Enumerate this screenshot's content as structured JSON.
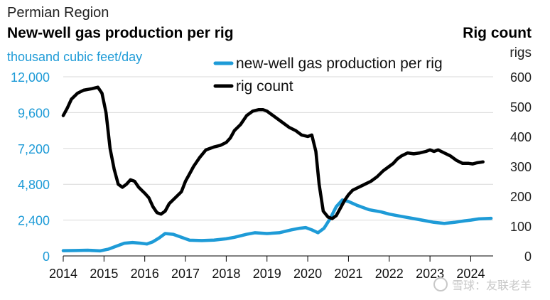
{
  "header": {
    "region": "Permian Region",
    "left_title": "New-well gas production per rig",
    "left_unit": "thousand cubic feet/day",
    "right_title": "Rig count",
    "right_unit": "rigs"
  },
  "watermark": {
    "text": "雪球：友联老羊"
  },
  "colors": {
    "production": "#1e9bd7",
    "rigs": "#000000",
    "grid": "#d9d9d9",
    "axis": "#000000"
  },
  "chart_data": {
    "type": "line",
    "x_ticks": [
      "2014",
      "2015",
      "2016",
      "2017",
      "2018",
      "2019",
      "2020",
      "2021",
      "2022",
      "2023",
      "2024"
    ],
    "xlim": [
      2014,
      2024.55
    ],
    "y_left": {
      "ticks": [
        "0",
        "2,400",
        "4,800",
        "7,200",
        "9,600",
        "12,000"
      ],
      "lim": [
        0,
        12000
      ]
    },
    "y_right": {
      "ticks": [
        "0",
        "100",
        "200",
        "300",
        "400",
        "500",
        "600"
      ],
      "lim": [
        0,
        600
      ]
    },
    "legend": {
      "placement": "top-center"
    },
    "grid": "horizontal",
    "series": [
      {
        "name": "new-well gas production per rig",
        "axis": "left",
        "color": "#1e9bd7",
        "points": [
          [
            2014.0,
            350
          ],
          [
            2014.3,
            360
          ],
          [
            2014.6,
            380
          ],
          [
            2014.9,
            340
          ],
          [
            2015.1,
            450
          ],
          [
            2015.3,
            650
          ],
          [
            2015.5,
            850
          ],
          [
            2015.7,
            900
          ],
          [
            2015.9,
            850
          ],
          [
            2016.05,
            800
          ],
          [
            2016.2,
            950
          ],
          [
            2016.35,
            1200
          ],
          [
            2016.5,
            1500
          ],
          [
            2016.7,
            1450
          ],
          [
            2016.9,
            1250
          ],
          [
            2017.1,
            1050
          ],
          [
            2017.4,
            1030
          ],
          [
            2017.7,
            1060
          ],
          [
            2018.0,
            1150
          ],
          [
            2018.2,
            1250
          ],
          [
            2018.5,
            1450
          ],
          [
            2018.7,
            1550
          ],
          [
            2019.0,
            1500
          ],
          [
            2019.3,
            1550
          ],
          [
            2019.6,
            1750
          ],
          [
            2019.8,
            1850
          ],
          [
            2019.95,
            1900
          ],
          [
            2020.1,
            1750
          ],
          [
            2020.25,
            1550
          ],
          [
            2020.4,
            1850
          ],
          [
            2020.55,
            2500
          ],
          [
            2020.7,
            3300
          ],
          [
            2020.85,
            3750
          ],
          [
            2021.0,
            3650
          ],
          [
            2021.2,
            3400
          ],
          [
            2021.5,
            3100
          ],
          [
            2021.8,
            2950
          ],
          [
            2022.0,
            2800
          ],
          [
            2022.3,
            2650
          ],
          [
            2022.6,
            2500
          ],
          [
            2022.9,
            2350
          ],
          [
            2023.1,
            2250
          ],
          [
            2023.35,
            2180
          ],
          [
            2023.6,
            2250
          ],
          [
            2023.85,
            2350
          ],
          [
            2024.0,
            2400
          ],
          [
            2024.2,
            2480
          ],
          [
            2024.5,
            2520
          ]
        ]
      },
      {
        "name": "rig count",
        "axis": "right",
        "color": "#000000",
        "points": [
          [
            2014.0,
            470
          ],
          [
            2014.1,
            495
          ],
          [
            2014.2,
            525
          ],
          [
            2014.35,
            545
          ],
          [
            2014.5,
            555
          ],
          [
            2014.7,
            560
          ],
          [
            2014.85,
            565
          ],
          [
            2014.95,
            545
          ],
          [
            2015.05,
            480
          ],
          [
            2015.15,
            360
          ],
          [
            2015.25,
            290
          ],
          [
            2015.35,
            240
          ],
          [
            2015.45,
            230
          ],
          [
            2015.55,
            240
          ],
          [
            2015.65,
            255
          ],
          [
            2015.75,
            250
          ],
          [
            2015.85,
            230
          ],
          [
            2016.0,
            210
          ],
          [
            2016.1,
            195
          ],
          [
            2016.2,
            165
          ],
          [
            2016.3,
            145
          ],
          [
            2016.4,
            140
          ],
          [
            2016.5,
            150
          ],
          [
            2016.6,
            175
          ],
          [
            2016.75,
            195
          ],
          [
            2016.9,
            215
          ],
          [
            2017.0,
            250
          ],
          [
            2017.1,
            275
          ],
          [
            2017.2,
            300
          ],
          [
            2017.35,
            330
          ],
          [
            2017.5,
            355
          ],
          [
            2017.7,
            365
          ],
          [
            2017.85,
            370
          ],
          [
            2018.0,
            380
          ],
          [
            2018.1,
            395
          ],
          [
            2018.2,
            420
          ],
          [
            2018.35,
            440
          ],
          [
            2018.5,
            470
          ],
          [
            2018.65,
            485
          ],
          [
            2018.8,
            490
          ],
          [
            2018.9,
            490
          ],
          [
            2019.0,
            485
          ],
          [
            2019.15,
            470
          ],
          [
            2019.35,
            450
          ],
          [
            2019.55,
            430
          ],
          [
            2019.7,
            420
          ],
          [
            2019.85,
            405
          ],
          [
            2020.0,
            400
          ],
          [
            2020.1,
            405
          ],
          [
            2020.2,
            350
          ],
          [
            2020.28,
            240
          ],
          [
            2020.38,
            150
          ],
          [
            2020.5,
            130
          ],
          [
            2020.6,
            125
          ],
          [
            2020.7,
            135
          ],
          [
            2020.8,
            160
          ],
          [
            2020.9,
            185
          ],
          [
            2021.0,
            205
          ],
          [
            2021.1,
            220
          ],
          [
            2021.25,
            230
          ],
          [
            2021.4,
            240
          ],
          [
            2021.55,
            250
          ],
          [
            2021.7,
            265
          ],
          [
            2021.85,
            285
          ],
          [
            2022.0,
            300
          ],
          [
            2022.1,
            310
          ],
          [
            2022.2,
            325
          ],
          [
            2022.3,
            335
          ],
          [
            2022.45,
            345
          ],
          [
            2022.6,
            342
          ],
          [
            2022.75,
            345
          ],
          [
            2022.9,
            350
          ],
          [
            2023.0,
            355
          ],
          [
            2023.1,
            350
          ],
          [
            2023.2,
            355
          ],
          [
            2023.35,
            345
          ],
          [
            2023.5,
            335
          ],
          [
            2023.65,
            320
          ],
          [
            2023.8,
            310
          ],
          [
            2023.95,
            310
          ],
          [
            2024.05,
            308
          ],
          [
            2024.15,
            312
          ],
          [
            2024.3,
            315
          ]
        ]
      }
    ]
  }
}
